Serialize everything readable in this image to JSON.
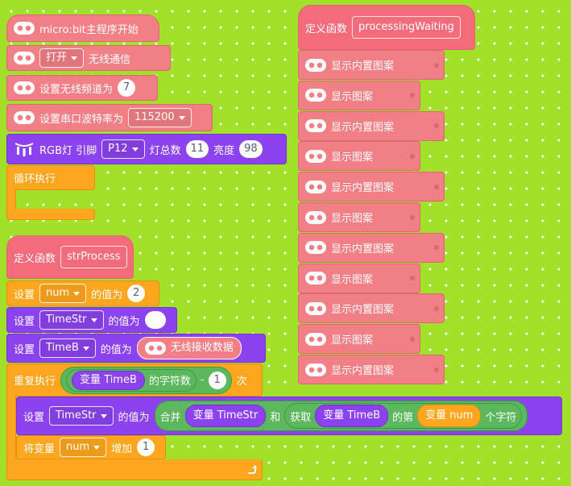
{
  "main_script": {
    "start": "micro:bit主程序开始",
    "radio": [
      "打开",
      "无线通信"
    ],
    "channel": [
      "设置无线频道为",
      "7"
    ],
    "baud": [
      "设置串口波特率为",
      "115200"
    ],
    "rgb": [
      "RGB灯 引脚",
      "P12",
      "灯总数",
      "11",
      "亮度",
      "98"
    ],
    "loop": "循环执行"
  },
  "str_process": {
    "define": [
      "定义函数",
      "strProcess"
    ],
    "set_num": [
      "设置",
      "num",
      "的值为",
      "2"
    ],
    "set_timestr": [
      "设置",
      "TimeStr",
      "的值为"
    ],
    "set_timeb": [
      "设置",
      "TimeB",
      "的值为",
      "无线接收数据"
    ],
    "repeat": [
      "重复执行",
      "变量 TimeB",
      "的字符数",
      "-",
      "1",
      "次"
    ],
    "set_join": [
      "设置",
      "TimeStr",
      "的值为",
      "合并",
      "变量 TimeStr",
      "和",
      "获取",
      "变量 TimeB",
      "的第",
      "变量 num",
      "个字符"
    ],
    "change": [
      "将变量",
      "num",
      "增加",
      "1"
    ]
  },
  "processing_waiting": {
    "define": [
      "定义函数",
      "processingWaiting"
    ],
    "blocks": [
      "显示内置图案",
      "显示图案",
      "显示内置图案",
      "显示图案",
      "显示内置图案",
      "显示图案",
      "显示内置图案",
      "显示图案",
      "显示内置图案",
      "显示图案",
      "显示内置图案"
    ]
  }
}
